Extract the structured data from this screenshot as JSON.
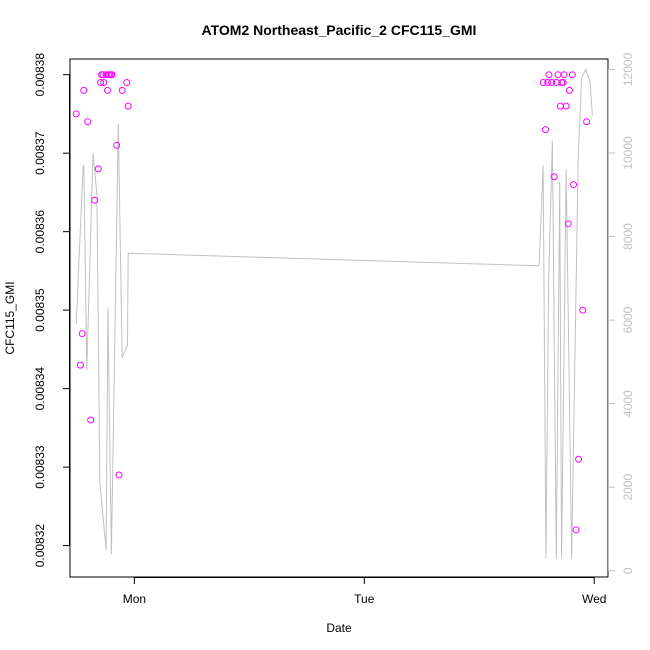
{
  "chart_data": {
    "type": "scatter",
    "title": "ATOM2 Northeast_Pacific_2 CFC115_GMI",
    "xlabel": "Date",
    "ylabel": "CFC115_GMI",
    "x_axis": {
      "range_days": [
        -0.28,
        2.06
      ],
      "ticks": [
        {
          "value": 0,
          "label": "Mon"
        },
        {
          "value": 1,
          "label": "Tue"
        },
        {
          "value": 2,
          "label": "Wed"
        }
      ]
    },
    "y_axis_left": {
      "range": [
        0.008316,
        0.008382
      ],
      "ticks": [
        {
          "value": 0.00832,
          "label": "0.00832"
        },
        {
          "value": 0.00833,
          "label": "0.00833"
        },
        {
          "value": 0.00834,
          "label": "0.00834"
        },
        {
          "value": 0.00835,
          "label": "0.00835"
        },
        {
          "value": 0.00836,
          "label": "0.00836"
        },
        {
          "value": 0.00837,
          "label": "0.00837"
        },
        {
          "value": 0.00838,
          "label": "0.00838"
        }
      ]
    },
    "y_axis_right": {
      "range": [
        -150,
        12250
      ],
      "color": "#c0c0c0",
      "ticks": [
        {
          "value": 0,
          "label": "0"
        },
        {
          "value": 2000,
          "label": "2000"
        },
        {
          "value": 4000,
          "label": "4000"
        },
        {
          "value": 6000,
          "label": "6000"
        },
        {
          "value": 8000,
          "label": "8000"
        },
        {
          "value": 10000,
          "label": "10000"
        },
        {
          "value": 12000,
          "label": "12000"
        }
      ]
    },
    "grid": false,
    "legend": "none",
    "series": [
      {
        "kind": "points",
        "axis": "left",
        "color": "#ff00ff",
        "points": [
          [
            -0.253,
            0.008375
          ],
          [
            -0.235,
            0.008343
          ],
          [
            -0.227,
            0.008347
          ],
          [
            -0.22,
            0.008378
          ],
          [
            -0.203,
            0.008374
          ],
          [
            -0.19,
            0.008336
          ],
          [
            -0.173,
            0.008364
          ],
          [
            -0.157,
            0.008368
          ],
          [
            -0.147,
            0.008379
          ],
          [
            -0.143,
            0.00838
          ],
          [
            -0.137,
            0.00838
          ],
          [
            -0.133,
            0.008379
          ],
          [
            -0.123,
            0.00838
          ],
          [
            -0.117,
            0.008378
          ],
          [
            -0.113,
            0.00838
          ],
          [
            -0.107,
            0.00838
          ],
          [
            -0.1,
            0.00838
          ],
          [
            -0.097,
            0.00838
          ],
          [
            -0.077,
            0.008371
          ],
          [
            -0.067,
            0.008329
          ],
          [
            -0.053,
            0.008378
          ],
          [
            -0.033,
            0.008379
          ],
          [
            -0.027,
            0.008376
          ],
          [
            1.778,
            0.008379
          ],
          [
            1.788,
            0.008373
          ],
          [
            1.798,
            0.008379
          ],
          [
            1.803,
            0.00838
          ],
          [
            1.815,
            0.008379
          ],
          [
            1.826,
            0.008367
          ],
          [
            1.835,
            0.008379
          ],
          [
            1.842,
            0.00838
          ],
          [
            1.853,
            0.008376
          ],
          [
            1.859,
            0.008379
          ],
          [
            1.865,
            0.008379
          ],
          [
            1.869,
            0.00838
          ],
          [
            1.878,
            0.008376
          ],
          [
            1.887,
            0.008361
          ],
          [
            1.892,
            0.008378
          ],
          [
            1.905,
            0.00838
          ],
          [
            1.91,
            0.008366
          ],
          [
            1.921,
            0.008322
          ],
          [
            1.932,
            0.008331
          ],
          [
            1.95,
            0.00835
          ],
          [
            1.967,
            0.008374
          ]
        ]
      },
      {
        "kind": "line",
        "axis": "right",
        "color": "#c0c0c0",
        "points": [
          [
            -0.253,
            5900
          ],
          [
            -0.223,
            9700
          ],
          [
            -0.22,
            9700
          ],
          [
            -0.207,
            4800
          ],
          [
            -0.18,
            10000
          ],
          [
            -0.163,
            9000
          ],
          [
            -0.15,
            2100
          ],
          [
            -0.123,
            500
          ],
          [
            -0.115,
            6300
          ],
          [
            -0.1,
            400
          ],
          [
            -0.07,
            10700
          ],
          [
            -0.053,
            5100
          ],
          [
            -0.03,
            5400
          ],
          [
            -0.027,
            7600
          ],
          [
            1.76,
            7300
          ],
          [
            1.778,
            9700
          ],
          [
            1.79,
            300
          ],
          [
            1.802,
            7000
          ],
          [
            1.818,
            10300
          ],
          [
            1.835,
            300
          ],
          [
            1.85,
            9300
          ],
          [
            1.858,
            300
          ],
          [
            1.878,
            9600
          ],
          [
            1.902,
            300
          ],
          [
            1.93,
            9800
          ],
          [
            1.945,
            11800
          ],
          [
            1.963,
            12000
          ],
          [
            1.982,
            11700
          ],
          [
            1.992,
            10900
          ]
        ]
      }
    ]
  }
}
